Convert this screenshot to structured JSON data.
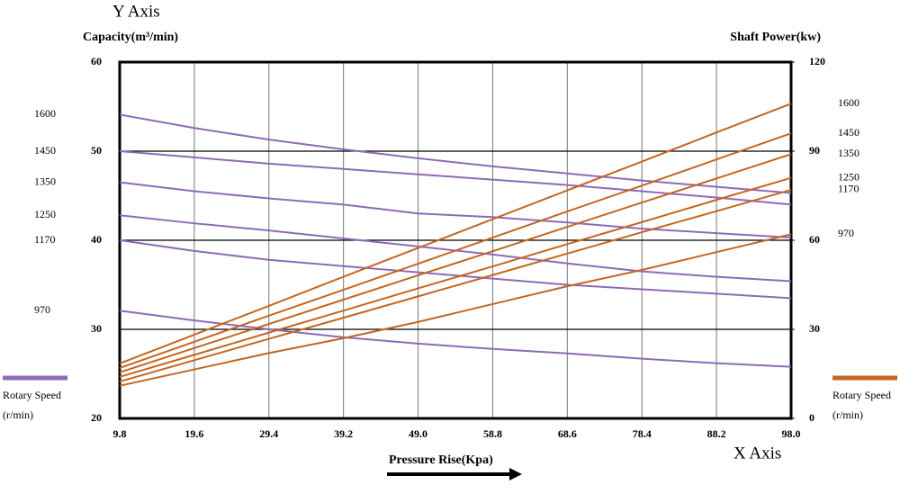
{
  "chart_data": {
    "type": "line",
    "y_axis_title": "Y Axis",
    "ylabel": "Capacity(m³/min)",
    "y2label": "Shaft Power(kw)",
    "xlabel": "Pressure Rise(Kpa)",
    "x_axis_title": "X Axis",
    "x": [
      9.8,
      19.6,
      29.4,
      39.2,
      49.0,
      58.8,
      68.6,
      78.4,
      88.2,
      98.0
    ],
    "xlim": [
      9.8,
      98.0
    ],
    "xticks": [
      9.8,
      19.6,
      29.4,
      39.2,
      {
        "value": 49,
        "label": "49.0"
      },
      58.8,
      68.6,
      78.4,
      88.2,
      {
        "value": 98,
        "label": "98.0"
      }
    ],
    "ylim": [
      20,
      60
    ],
    "yticks": [
      20,
      30,
      40,
      50,
      60
    ],
    "y2lim": [
      0,
      120
    ],
    "y2ticks": [
      0,
      30,
      60,
      90,
      120
    ],
    "series": [
      {
        "name": "1600",
        "color": "#8e6bb8",
        "values": [
          54.1,
          52.6,
          51.3,
          50.2,
          49.2,
          48.3,
          47.5,
          46.7,
          46.0,
          45.3
        ]
      },
      {
        "name": "1450",
        "color": "#8e6bb8",
        "values": [
          50.0,
          49.3,
          48.6,
          48.0,
          47.4,
          46.8,
          46.2,
          45.5,
          44.8,
          44.0
        ]
      },
      {
        "name": "1350",
        "color": "#8e6bb8",
        "values": [
          46.5,
          45.5,
          44.7,
          44.0,
          43.0,
          42.6,
          42.0,
          41.3,
          40.8,
          40.3
        ]
      },
      {
        "name": "1250",
        "color": "#8e6bb8",
        "values": [
          42.8,
          41.9,
          41.1,
          40.2,
          39.3,
          38.4,
          37.4,
          36.5,
          35.9,
          35.4
        ]
      },
      {
        "name": "1170",
        "color": "#8e6bb8",
        "values": [
          40.0,
          38.8,
          37.8,
          37.1,
          36.4,
          35.7,
          35.0,
          34.5,
          34.0,
          33.5
        ]
      },
      {
        "name": "970",
        "color": "#8e6bb8",
        "values": [
          32.1,
          31.0,
          30.0,
          29.1,
          28.4,
          27.8,
          27.3,
          26.7,
          26.2,
          25.8
        ]
      },
      {
        "name": "1600",
        "color": "#c4661f",
        "axis": "y2",
        "values": [
          18.5,
          28.2,
          37.9,
          47.7,
          57.4,
          67.1,
          76.8,
          86.5,
          96.3,
          106
        ]
      },
      {
        "name": "1450",
        "color": "#c4661f",
        "axis": "y2",
        "values": [
          17,
          25.8,
          34.6,
          43.3,
          52.1,
          60.9,
          69.7,
          78.4,
          87.2,
          96
        ]
      },
      {
        "name": "1350",
        "color": "#c4661f",
        "axis": "y2",
        "values": [
          15.5,
          23.7,
          31.8,
          40,
          48.2,
          56.3,
          64.5,
          72.7,
          80.8,
          89
        ]
      },
      {
        "name": "1250",
        "color": "#c4661f",
        "axis": "y2",
        "values": [
          14,
          21.4,
          28.9,
          36.3,
          43.8,
          51.2,
          58.7,
          66.1,
          73.6,
          81
        ]
      },
      {
        "name": "1170",
        "color": "#c4661f",
        "axis": "y2",
        "values": [
          12.4,
          19.6,
          26.8,
          33.9,
          41.1,
          48.3,
          55.5,
          62.7,
          69.8,
          77
        ]
      },
      {
        "name": "970",
        "color": "#c4661f",
        "axis": "y2",
        "values": [
          11,
          16.5,
          22,
          27,
          32.5,
          38.5,
          44.5,
          50,
          56,
          62
        ]
      }
    ],
    "legend": [
      {
        "label": "Rotary Speed",
        "unit": "(r/min)",
        "color": "#8e6bb8"
      },
      {
        "label": "Rotary Speed",
        "unit": "(r/min)",
        "color": "#c4661f"
      }
    ]
  }
}
